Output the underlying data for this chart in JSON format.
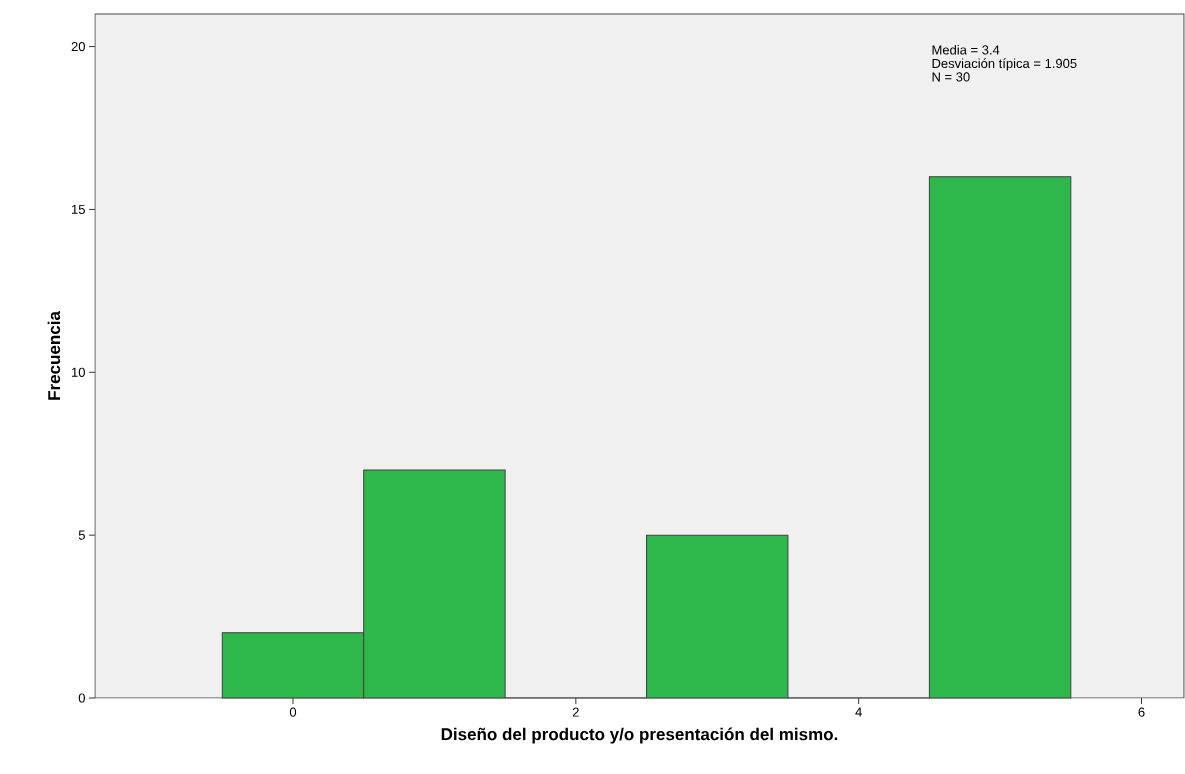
{
  "chart_data": {
    "type": "histogram",
    "xlabel": "Diseño del producto y/o presentación del mismo.",
    "ylabel": "Frecuencia",
    "bins": [
      -0.5,
      0.5,
      1.5,
      2.5,
      3.5,
      4.5,
      5.5
    ],
    "values": [
      2,
      7,
      0,
      5,
      0,
      16
    ],
    "color": "#2eb84b",
    "xlim": [
      -1.4,
      6.3
    ],
    "xticks": [
      0,
      2,
      4,
      6
    ],
    "ylim": [
      0,
      21
    ],
    "yticks": [
      0,
      5,
      10,
      15,
      20
    ],
    "annotations": [
      "Media = 3.4",
      "Desviación típica = 1.905",
      "N = 30"
    ]
  }
}
